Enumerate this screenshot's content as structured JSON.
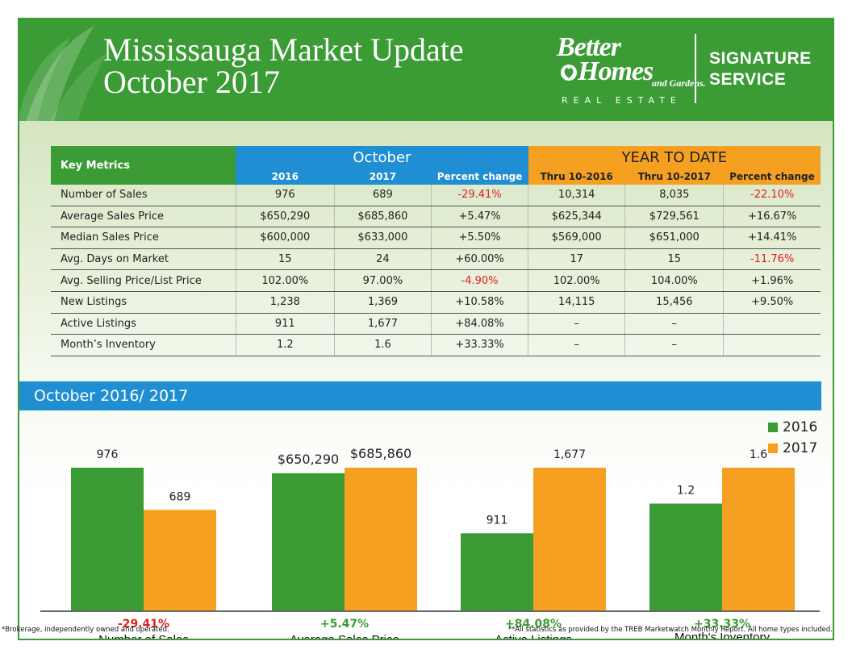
{
  "header": {
    "title_line1": "Mississauga Market Update",
    "title_line2": "October 2017",
    "brand_line1": "Better",
    "brand_line2": "Homes",
    "brand_line3": "and Gardens.",
    "brand_line4": "REAL ESTATE",
    "signature_line1": "SIGNATURE",
    "signature_line2": "SERVICE"
  },
  "table": {
    "key_label": "Key Metrics",
    "group_october": "October",
    "group_ytd": "YEAR TO DATE",
    "subheaders": [
      "2016",
      "2017",
      "Percent change",
      "Thru 10-2016",
      "Thru 10-2017",
      "Percent change"
    ],
    "rows": [
      {
        "label": "Number of Sales",
        "cells": [
          "976",
          "689",
          "-29.41%",
          "10,314",
          "8,035",
          "-22.10%"
        ],
        "neg": [
          2,
          5
        ]
      },
      {
        "label": "Average Sales Price",
        "cells": [
          "$650,290",
          "$685,860",
          "+5.47%",
          "$625,344",
          "$729,561",
          "+16.67%"
        ],
        "neg": []
      },
      {
        "label": "Median Sales Price",
        "cells": [
          "$600,000",
          "$633,000",
          "+5.50%",
          "$569,000",
          "$651,000",
          "+14.41%"
        ],
        "neg": []
      },
      {
        "label": "Avg. Days on Market",
        "cells": [
          "15",
          "24",
          "+60.00%",
          "17",
          "15",
          "-11.76%"
        ],
        "neg": [
          5
        ]
      },
      {
        "label": "Avg. Selling Price/List Price",
        "cells": [
          "102.00%",
          "97.00%",
          "-4.90%",
          "102.00%",
          "104.00%",
          "+1.96%"
        ],
        "neg": [
          2
        ]
      },
      {
        "label": "New Listings",
        "cells": [
          "1,238",
          "1,369",
          "+10.58%",
          "14,115",
          "15,456",
          "+9.50%"
        ],
        "neg": []
      },
      {
        "label": "Active Listings",
        "cells": [
          "911",
          "1,677",
          "+84.08%",
          "–",
          "–",
          ""
        ],
        "neg": []
      },
      {
        "label": "Month’s Inventory",
        "cells": [
          "1.2",
          "1.6",
          "+33.33%",
          "–",
          "–",
          ""
        ],
        "neg": []
      }
    ]
  },
  "chart_title": "October 2016/ 2017",
  "chart_data": {
    "type": "bar",
    "categories": [
      "Number of Sales",
      "Average Sales Price",
      "Active Listings",
      "Month's Inventory"
    ],
    "series": [
      {
        "name": "2016",
        "values": [
          976,
          650290,
          911,
          1.2
        ],
        "labels": [
          "976",
          "$650,290",
          "911",
          "1.2"
        ],
        "color": "#3b9b35"
      },
      {
        "name": "2017",
        "values": [
          689,
          685860,
          1677,
          1.6
        ],
        "labels": [
          "689",
          "$685,860",
          "1,677",
          "1.6"
        ],
        "color": "#f5a021"
      }
    ],
    "changes": [
      {
        "text": "-29.41%",
        "color": "#e02020"
      },
      {
        "text": "+5.47%",
        "color": "#3b9b35"
      },
      {
        "text": "+84.08%",
        "color": "#3b9b35"
      },
      {
        "text": "+33.33%",
        "color": "#3b9b35"
      }
    ],
    "legend_position": "top-right"
  },
  "footer": {
    "left": "*Brokerage, independently owned and operated.",
    "right": "**All statistics as provided by the TREB Marketwatch Monthly Report. All home types included."
  }
}
